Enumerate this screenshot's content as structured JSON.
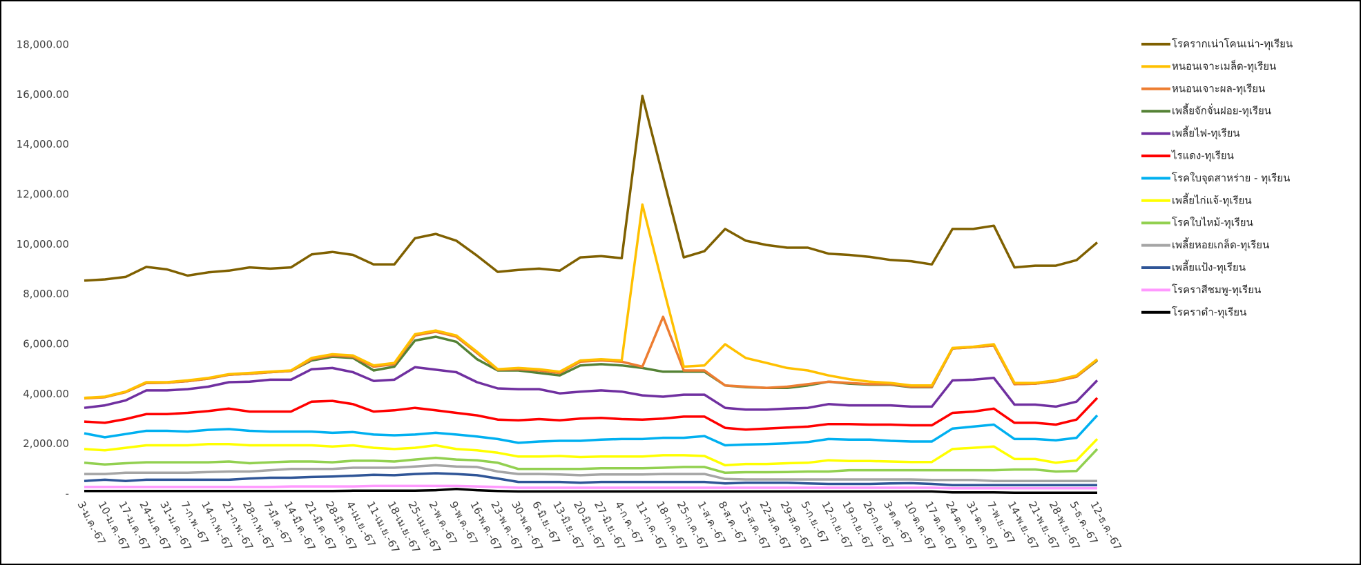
{
  "chart_data": {
    "type": "line",
    "categories": [
      "3-ม.ค.-67",
      "10-ม.ค.-67",
      "17-ม.ค.-67",
      "24-ม.ค.-67",
      "31-ม.ค.-67",
      "7-ก.พ.-67",
      "14-ก.พ.-67",
      "21-ก.พ.-67",
      "28-ก.พ.-67",
      "7-มี.ค.-67",
      "14-มี.ค.-67",
      "21-มี.ค.-67",
      "28-มี.ค.-67",
      "4-เม.ย.-67",
      "11-เม.ย.-67",
      "18-เม.ย.-67",
      "25-เม.ย.-67",
      "2-พ.ค.-67",
      "9-พ.ค.-67",
      "16-พ.ค.-67",
      "23-พ.ค.-67",
      "30-พ.ค.-67",
      "6-มิ.ย.-67",
      "13-มิ.ย.-67",
      "20-มิ.ย.-67",
      "27-มิ.ย.-67",
      "4-ก.ค.-67",
      "11-ก.ค.-67",
      "18-ก.ค.-67",
      "25-ก.ค.-67",
      "1-ส.ค.-67",
      "8-ส.ค.-67",
      "15-ส.ค.-67",
      "22-ส.ค.-67",
      "29-ส.ค.-67",
      "5-ก.ย.-67",
      "12-ก.ย.-67",
      "19-ก.ย.-67",
      "26-ก.ย.-67",
      "3-ต.ค.-67",
      "10-ต.ค.-67",
      "17-ต.ค.-67",
      "24-ต.ค.-67",
      "31-ต.ค.-67",
      "7-พ.ย.-67",
      "14-พ.ย.-67",
      "21-พ.ย.-67",
      "28-พ.ย.-67",
      "5-ธ.ค.-67",
      "12-ธ.ค.-67"
    ],
    "series": [
      {
        "name": "โรครากเน่าโคนเน่า-ทุเรียน",
        "color": "#7f6000",
        "values": [
          8550,
          8600,
          8700,
          9100,
          9000,
          8750,
          8880,
          8950,
          9080,
          9030,
          9080,
          9600,
          9700,
          9580,
          9200,
          9200,
          10250,
          10420,
          10150,
          9550,
          8900,
          8980,
          9030,
          8950,
          9480,
          9530,
          9450,
          15950,
          12700,
          9480,
          9730,
          10620,
          10150,
          9980,
          9870,
          9870,
          9630,
          9580,
          9500,
          9380,
          9330,
          9200,
          10620,
          10620,
          10750,
          9080,
          9150,
          9150,
          9370,
          10080
        ]
      },
      {
        "name": "หนอนเจาะเมล็ด-ทุเรียน",
        "color": "#ffc000",
        "values": [
          3850,
          3900,
          4100,
          4480,
          4480,
          4550,
          4650,
          4800,
          4850,
          4900,
          4950,
          5450,
          5600,
          5550,
          5150,
          5250,
          6400,
          6550,
          6350,
          5700,
          5000,
          5050,
          5000,
          4900,
          5350,
          5400,
          5350,
          11600,
          8300,
          5100,
          5150,
          6000,
          5450,
          5250,
          5050,
          4950,
          4750,
          4600,
          4500,
          4450,
          4350,
          4350,
          5850,
          5900,
          6000,
          4450,
          4450,
          4550,
          4750,
          5400
        ]
      },
      {
        "name": "หนอนเจาะผล-ทุเรียน",
        "color": "#ed7d31",
        "values": [
          3830,
          3880,
          4080,
          4450,
          4460,
          4520,
          4620,
          4780,
          4820,
          4880,
          4930,
          5400,
          5550,
          5500,
          5100,
          5200,
          6350,
          6500,
          6300,
          5650,
          4980,
          5000,
          4950,
          4850,
          5300,
          5350,
          5300,
          5100,
          7100,
          4950,
          4950,
          4350,
          4300,
          4250,
          4300,
          4400,
          4500,
          4450,
          4400,
          4400,
          4300,
          4300,
          5830,
          5880,
          5950,
          4400,
          4420,
          4520,
          4700,
          5380
        ]
      },
      {
        "name": "เพลี้ยจักจั่นฝอย-ทุเรียน",
        "color": "#548235",
        "values": [
          3850,
          3880,
          4080,
          4450,
          4460,
          4520,
          4620,
          4780,
          4820,
          4880,
          4930,
          5350,
          5500,
          5450,
          4950,
          5100,
          6150,
          6300,
          6100,
          5400,
          4950,
          4950,
          4850,
          4750,
          5150,
          5200,
          5150,
          5050,
          4900,
          4900,
          4900,
          4350,
          4280,
          4250,
          4250,
          4350,
          4500,
          4420,
          4380,
          4380,
          4280,
          4280,
          5830,
          5880,
          5950,
          4400,
          4420,
          4520,
          4700,
          5350
        ]
      },
      {
        "name": "เพลี้ยไฟ-ทุเรียน",
        "color": "#7030a0",
        "values": [
          3450,
          3550,
          3750,
          4150,
          4150,
          4200,
          4300,
          4480,
          4500,
          4580,
          4580,
          5000,
          5050,
          4880,
          4530,
          4580,
          5080,
          4980,
          4880,
          4480,
          4230,
          4200,
          4200,
          4030,
          4100,
          4150,
          4100,
          3950,
          3900,
          3980,
          3980,
          3450,
          3380,
          3380,
          3420,
          3450,
          3600,
          3550,
          3550,
          3550,
          3500,
          3500,
          4550,
          4580,
          4650,
          3580,
          3580,
          3500,
          3700,
          4550
        ]
      },
      {
        "name": "ไรแดง-ทุเรียน",
        "color": "#ff0000",
        "values": [
          2900,
          2850,
          3000,
          3200,
          3200,
          3250,
          3320,
          3420,
          3300,
          3300,
          3300,
          3700,
          3730,
          3600,
          3300,
          3350,
          3450,
          3350,
          3250,
          3150,
          2980,
          2950,
          3000,
          2950,
          3020,
          3050,
          3000,
          2980,
          3020,
          3100,
          3100,
          2650,
          2580,
          2620,
          2660,
          2700,
          2800,
          2800,
          2780,
          2780,
          2750,
          2750,
          3250,
          3300,
          3420,
          2850,
          2850,
          2780,
          2980,
          3850
        ]
      },
      {
        "name": "โรคใบจุดสาหร่าย - ทุเรียน",
        "color": "#00b0f0",
        "values": [
          2430,
          2270,
          2400,
          2530,
          2530,
          2500,
          2570,
          2600,
          2530,
          2500,
          2500,
          2500,
          2450,
          2480,
          2380,
          2350,
          2380,
          2450,
          2380,
          2300,
          2200,
          2050,
          2100,
          2130,
          2130,
          2180,
          2200,
          2200,
          2250,
          2250,
          2320,
          1950,
          1980,
          2000,
          2030,
          2080,
          2200,
          2180,
          2180,
          2130,
          2100,
          2100,
          2620,
          2700,
          2780,
          2200,
          2200,
          2150,
          2250,
          3150
        ]
      },
      {
        "name": "เพลี้ยไก่แจ้-ทุเรียน",
        "color": "#ffff00",
        "values": [
          1800,
          1750,
          1850,
          1950,
          1950,
          1950,
          2000,
          2000,
          1950,
          1950,
          1950,
          1950,
          1900,
          1950,
          1850,
          1800,
          1850,
          1950,
          1800,
          1750,
          1650,
          1500,
          1500,
          1520,
          1480,
          1500,
          1500,
          1500,
          1550,
          1550,
          1520,
          1150,
          1200,
          1200,
          1230,
          1250,
          1350,
          1320,
          1320,
          1300,
          1280,
          1280,
          1800,
          1850,
          1900,
          1400,
          1400,
          1250,
          1350,
          2200
        ]
      },
      {
        "name": "โรคใบไหม้-ทุเรียน",
        "color": "#92d050",
        "values": [
          1250,
          1180,
          1230,
          1270,
          1270,
          1270,
          1270,
          1300,
          1230,
          1270,
          1300,
          1300,
          1270,
          1330,
          1330,
          1300,
          1380,
          1450,
          1380,
          1350,
          1250,
          1000,
          1000,
          1000,
          1000,
          1030,
          1030,
          1030,
          1050,
          1080,
          1080,
          850,
          870,
          870,
          880,
          900,
          900,
          950,
          950,
          950,
          950,
          950,
          950,
          950,
          950,
          980,
          980,
          900,
          920,
          1800
        ]
      },
      {
        "name": "เพลี้ยหอยเกล็ด-ทุเรียน",
        "color": "#a5a5a5",
        "values": [
          800,
          800,
          850,
          850,
          850,
          850,
          880,
          900,
          900,
          950,
          1000,
          1000,
          1000,
          1050,
          1050,
          1050,
          1100,
          1150,
          1100,
          1080,
          900,
          800,
          800,
          780,
          750,
          780,
          780,
          780,
          800,
          800,
          800,
          600,
          580,
          580,
          580,
          580,
          580,
          580,
          580,
          580,
          580,
          560,
          560,
          560,
          520,
          520,
          520,
          520,
          520,
          520
        ]
      },
      {
        "name": "เพลี้ยแป้ง-ทุเรียน",
        "color": "#2f5597",
        "values": [
          520,
          570,
          520,
          570,
          570,
          570,
          570,
          570,
          620,
          650,
          650,
          680,
          700,
          730,
          770,
          750,
          800,
          830,
          800,
          750,
          620,
          480,
          480,
          480,
          450,
          480,
          480,
          480,
          480,
          480,
          480,
          420,
          450,
          450,
          450,
          420,
          400,
          400,
          400,
          420,
          430,
          400,
          350,
          350,
          350,
          350,
          350,
          350,
          350,
          350
        ]
      },
      {
        "name": "โรคราสีชมพู-ทุเรียน",
        "color": "#ff99ff",
        "values": [
          280,
          280,
          280,
          280,
          280,
          280,
          280,
          280,
          280,
          280,
          300,
          300,
          300,
          300,
          320,
          320,
          320,
          320,
          320,
          300,
          280,
          250,
          250,
          250,
          250,
          250,
          250,
          250,
          250,
          250,
          250,
          250,
          250,
          250,
          250,
          250,
          250,
          250,
          250,
          250,
          250,
          250,
          230,
          230,
          230,
          230,
          230,
          230,
          230,
          230
        ]
      },
      {
        "name": "โรคราดำ-ทุเรียน",
        "color": "#000000",
        "values": [
          120,
          120,
          120,
          120,
          120,
          120,
          120,
          120,
          120,
          120,
          120,
          120,
          120,
          130,
          130,
          130,
          130,
          150,
          200,
          150,
          120,
          100,
          100,
          100,
          100,
          100,
          100,
          100,
          100,
          100,
          100,
          100,
          100,
          100,
          100,
          100,
          100,
          100,
          100,
          100,
          100,
          100,
          60,
          60,
          60,
          50,
          50,
          50,
          50,
          50
        ]
      }
    ],
    "ylim": [
      0,
      18000
    ],
    "yticks": [
      {
        "value": 0,
        "label": "-"
      },
      {
        "value": 2000,
        "label": "2,000.00"
      },
      {
        "value": 4000,
        "label": "4,000.00"
      },
      {
        "value": 6000,
        "label": "6,000.00"
      },
      {
        "value": 8000,
        "label": "8,000.00"
      },
      {
        "value": 10000,
        "label": "10,000.00"
      },
      {
        "value": 12000,
        "label": "12,000.00"
      },
      {
        "value": 14000,
        "label": "14,000.00"
      },
      {
        "value": 16000,
        "label": "16,000.00"
      },
      {
        "value": 18000,
        "label": "18,000.00"
      }
    ],
    "grid": false,
    "legend": "right"
  }
}
